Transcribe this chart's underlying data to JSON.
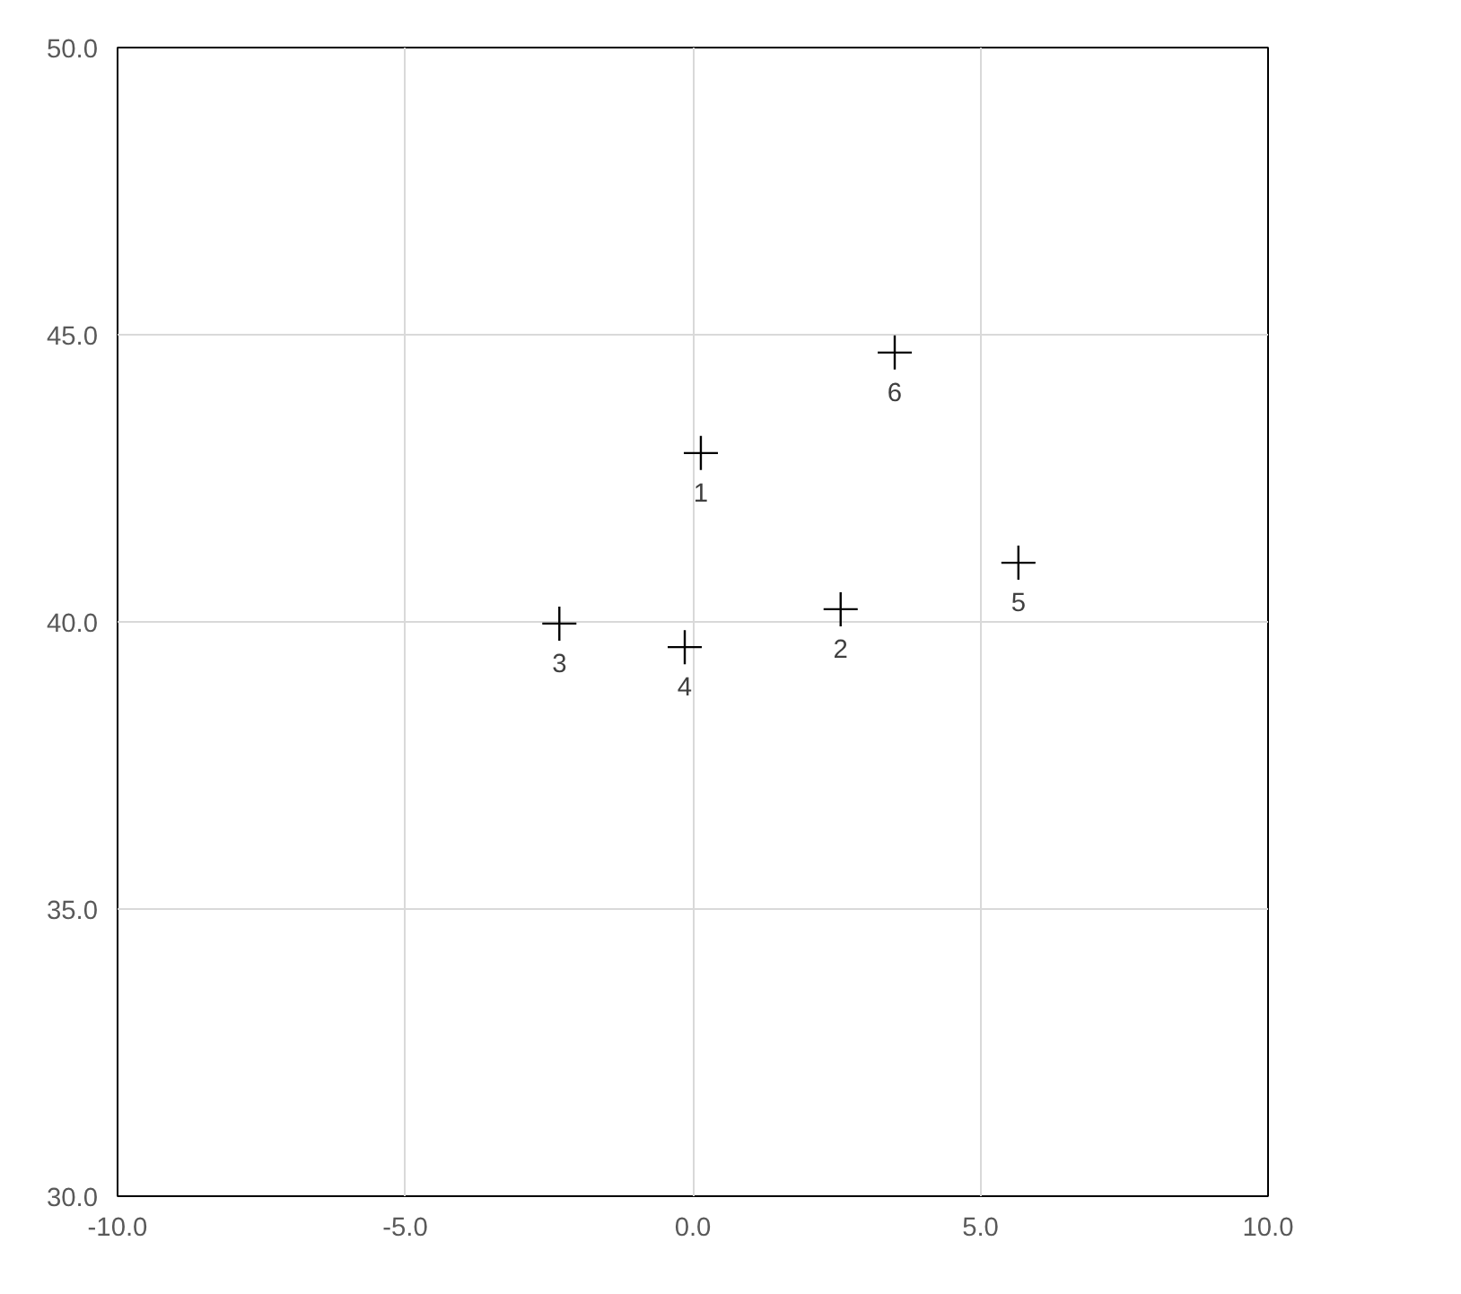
{
  "chart_data": {
    "type": "scatter",
    "x": [
      0.14,
      2.57,
      -2.32,
      -0.14,
      5.66,
      3.51
    ],
    "values": [
      42.94,
      40.22,
      39.97,
      39.56,
      41.03,
      44.69
    ],
    "annotations": [
      {
        "text": "1",
        "x": 0.14,
        "y": 42.94
      },
      {
        "text": "2",
        "x": 2.57,
        "y": 40.22
      },
      {
        "text": "3",
        "x": -2.32,
        "y": 39.97
      },
      {
        "text": "4",
        "x": -0.14,
        "y": 39.56
      },
      {
        "text": "5",
        "x": 5.66,
        "y": 41.03
      },
      {
        "text": "6",
        "x": 3.51,
        "y": 44.69
      }
    ],
    "color": "#000000",
    "marker": "cross",
    "xlim": [
      -10,
      10
    ],
    "xticks": [
      {
        "value": -10,
        "label": "-10.0"
      },
      {
        "value": -5,
        "label": "-5.0"
      },
      {
        "value": 0,
        "label": "0.0"
      },
      {
        "value": 5,
        "label": "5.0"
      },
      {
        "value": 10,
        "label": "10.0"
      }
    ],
    "ylim": [
      30,
      50
    ],
    "yticks": [
      {
        "value": 30,
        "label": "30.0"
      },
      {
        "value": 35,
        "label": "35.0"
      },
      {
        "value": 40,
        "label": "40.0"
      },
      {
        "value": 45,
        "label": "45.0"
      },
      {
        "value": 50,
        "label": "50.0"
      }
    ],
    "grid": true
  }
}
